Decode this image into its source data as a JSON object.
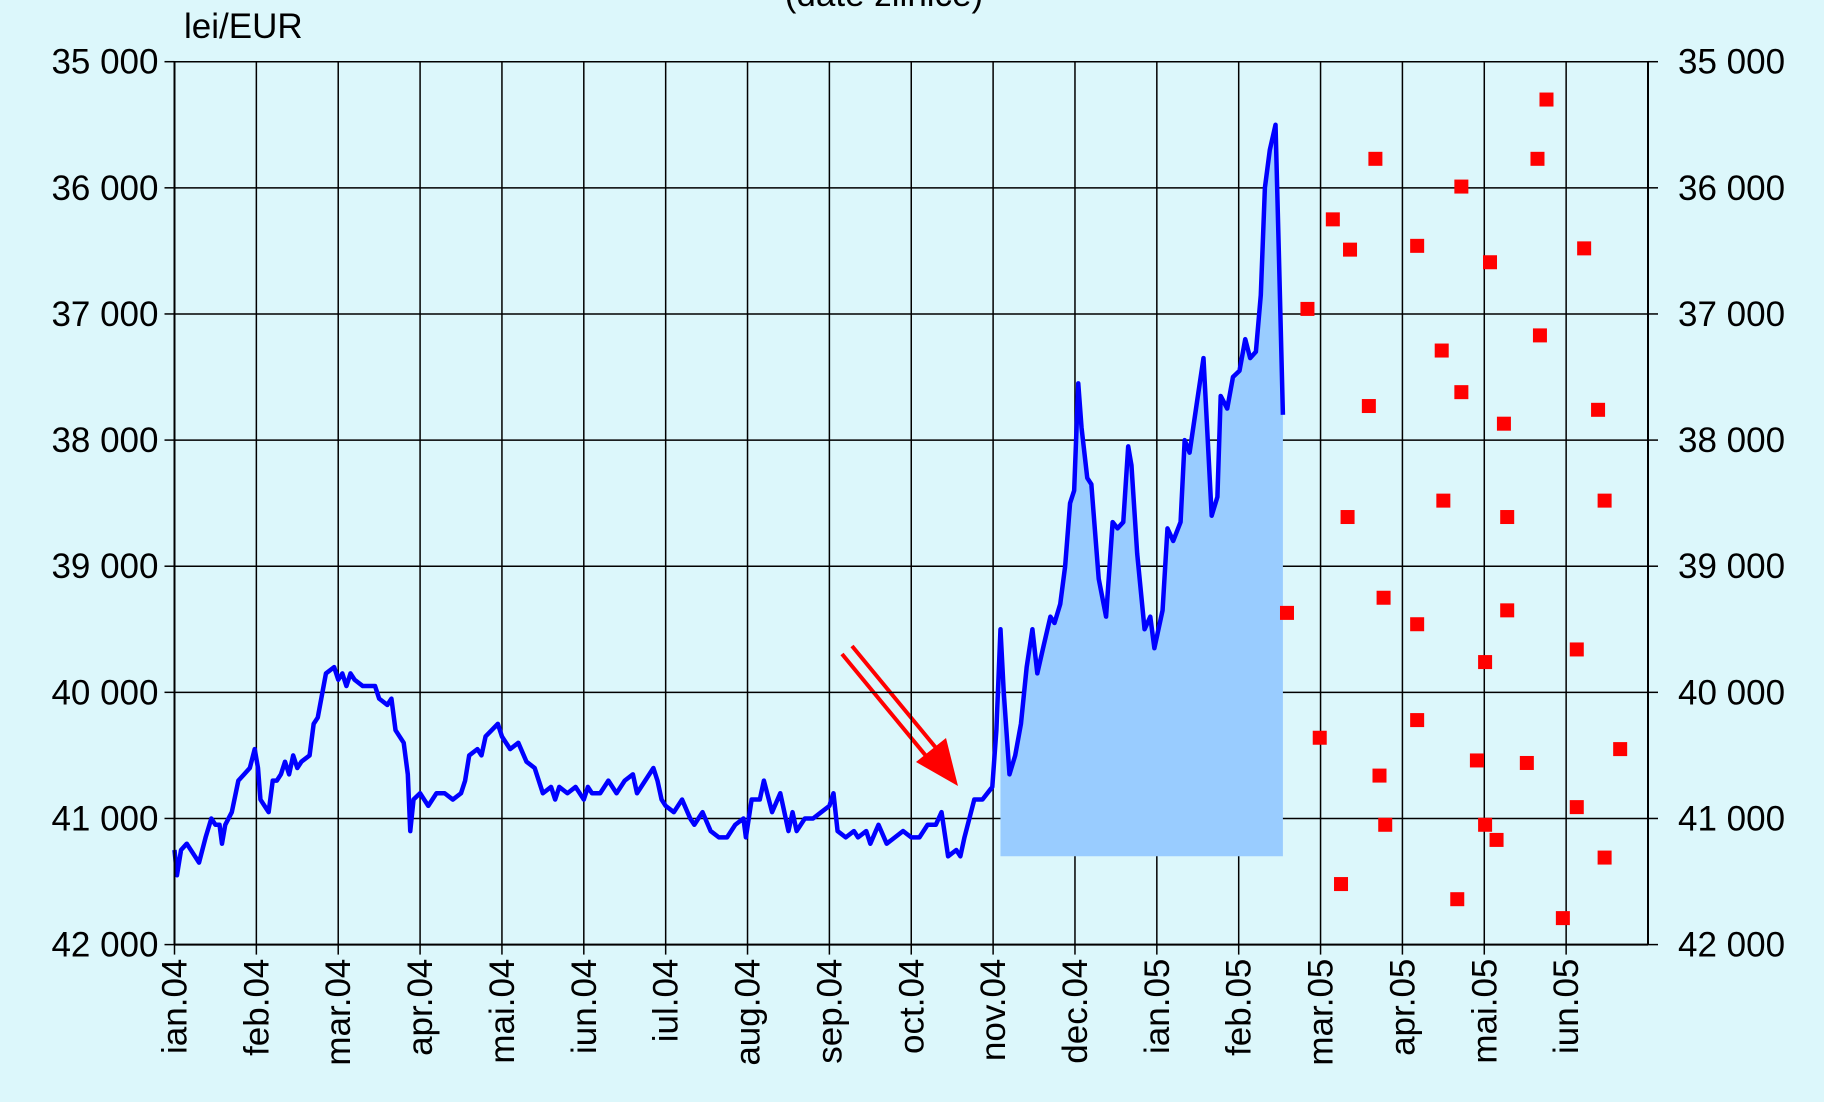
{
  "chart_data": {
    "type": "line",
    "subtitle": "(date zilnice)",
    "y_label": "lei/EUR",
    "xlim": [
      0,
      18
    ],
    "xticks": [
      {
        "value": 0,
        "label": "ian.04"
      },
      {
        "value": 1,
        "label": "feb.04"
      },
      {
        "value": 2,
        "label": "mar.04"
      },
      {
        "value": 3,
        "label": "apr.04"
      },
      {
        "value": 4,
        "label": "mai.04"
      },
      {
        "value": 5,
        "label": "iun.04"
      },
      {
        "value": 6,
        "label": "iul.04"
      },
      {
        "value": 7,
        "label": "aug.04"
      },
      {
        "value": 8,
        "label": "sep.04"
      },
      {
        "value": 9,
        "label": "oct.04"
      },
      {
        "value": 10,
        "label": "nov.04"
      },
      {
        "value": 11,
        "label": "dec.04"
      },
      {
        "value": 12,
        "label": "ian.05"
      },
      {
        "value": 13,
        "label": "feb.05"
      },
      {
        "value": 14,
        "label": "mar.05"
      },
      {
        "value": 15,
        "label": "apr.05"
      },
      {
        "value": 16,
        "label": "mai.05"
      },
      {
        "value": 17,
        "label": "iun.05"
      }
    ],
    "ylim": [
      42000,
      35000
    ],
    "yticks": [
      {
        "value": 35000,
        "label": "35 000"
      },
      {
        "value": 36000,
        "label": "36 000"
      },
      {
        "value": 37000,
        "label": "37 000"
      },
      {
        "value": 38000,
        "label": "38 000"
      },
      {
        "value": 39000,
        "label": "39 000"
      },
      {
        "value": 40000,
        "label": "40 000"
      },
      {
        "value": 41000,
        "label": "41 000"
      },
      {
        "value": 42000,
        "label": "42 000"
      }
    ],
    "y2lim": [
      42000,
      35000
    ],
    "y2ticks": [
      {
        "value": 35000,
        "label": "35 000"
      },
      {
        "value": 36000,
        "label": "36 000"
      },
      {
        "value": 37000,
        "label": "37 000"
      },
      {
        "value": 38000,
        "label": "38 000"
      },
      {
        "value": 39000,
        "label": "39 000"
      },
      {
        "value": 40000,
        "label": "40 000"
      },
      {
        "value": 41000,
        "label": "41 000"
      },
      {
        "value": 42000,
        "label": "42 000"
      }
    ],
    "grid": true,
    "series": [
      {
        "type": "line",
        "color": "#0000ff",
        "x": [
          0.0,
          0.03,
          0.08,
          0.15,
          0.25,
          0.3,
          0.38,
          0.45,
          0.5,
          0.55,
          0.58,
          0.62,
          0.7,
          0.78,
          0.85,
          0.92,
          0.98,
          1.02,
          1.05,
          1.1,
          1.15,
          1.2,
          1.25,
          1.3,
          1.35,
          1.4,
          1.45,
          1.5,
          1.55,
          1.65,
          1.7,
          1.75,
          1.85,
          1.95,
          2.0,
          2.05,
          2.1,
          2.15,
          2.2,
          2.3,
          2.45,
          2.5,
          2.6,
          2.65,
          2.7,
          2.8,
          2.85,
          2.88,
          2.92,
          3.0,
          3.05,
          3.1,
          3.2,
          3.3,
          3.4,
          3.5,
          3.55,
          3.6,
          3.7,
          3.75,
          3.8,
          3.95,
          4.0,
          4.1,
          4.2,
          4.3,
          4.4,
          4.5,
          4.6,
          4.65,
          4.7,
          4.8,
          4.9,
          5.0,
          5.05,
          5.1,
          5.2,
          5.3,
          5.4,
          5.5,
          5.6,
          5.65,
          5.75,
          5.85,
          5.9,
          5.95,
          6.0,
          6.1,
          6.2,
          6.3,
          6.35,
          6.45,
          6.55,
          6.65,
          6.75,
          6.85,
          6.95,
          6.98,
          7.05,
          7.15,
          7.2,
          7.3,
          7.4,
          7.5,
          7.55,
          7.6,
          7.7,
          7.8,
          7.9,
          8.0,
          8.05,
          8.1,
          8.2,
          8.3,
          8.35,
          8.45,
          8.5,
          8.6,
          8.7,
          8.8,
          8.9,
          9.0,
          9.1,
          9.2,
          9.3,
          9.37,
          9.45,
          9.55,
          9.6,
          9.65,
          9.77,
          9.87,
          9.99,
          10.04,
          10.09,
          10.13,
          10.2,
          10.27,
          10.34,
          10.41,
          10.48,
          10.54,
          10.61,
          10.7,
          10.75,
          10.82,
          10.88,
          10.94,
          10.99,
          11.04,
          11.08,
          11.15,
          11.2,
          11.29,
          11.38,
          11.46,
          11.52,
          11.59,
          11.65,
          11.69,
          11.76,
          11.85,
          11.92,
          11.97,
          12.07,
          12.13,
          12.2,
          12.29,
          12.34,
          12.4,
          12.49,
          12.57,
          12.67,
          12.74,
          12.78,
          12.86,
          12.93,
          13.01,
          13.08,
          13.14,
          13.21,
          13.27,
          13.32,
          13.38,
          13.45,
          13.49,
          13.54
        ],
        "values": [
          41250,
          41450,
          41250,
          41200,
          41300,
          41350,
          41150,
          41000,
          41050,
          41050,
          41200,
          41050,
          40950,
          40700,
          40650,
          40600,
          40450,
          40600,
          40850,
          40900,
          40950,
          40700,
          40700,
          40650,
          40550,
          40650,
          40500,
          40600,
          40550,
          40500,
          40250,
          40200,
          39850,
          39800,
          39900,
          39850,
          39950,
          39850,
          39900,
          39950,
          39950,
          40050,
          40100,
          40050,
          40300,
          40400,
          40650,
          41100,
          40850,
          40800,
          40850,
          40900,
          40800,
          40800,
          40850,
          40800,
          40700,
          40500,
          40450,
          40500,
          40350,
          40250,
          40350,
          40450,
          40400,
          40550,
          40600,
          40800,
          40750,
          40850,
          40750,
          40800,
          40750,
          40850,
          40750,
          40800,
          40800,
          40700,
          40800,
          40700,
          40650,
          40800,
          40700,
          40600,
          40700,
          40850,
          40900,
          40950,
          40850,
          41000,
          41050,
          40950,
          41100,
          41150,
          41150,
          41050,
          41000,
          41150,
          40850,
          40850,
          40700,
          40950,
          40800,
          41100,
          40950,
          41100,
          41000,
          41000,
          40950,
          40900,
          40800,
          41100,
          41150,
          41100,
          41150,
          41100,
          41200,
          41050,
          41200,
          41150,
          41100,
          41150,
          41150,
          41050,
          41050,
          40950,
          41300,
          41250,
          41300,
          41150,
          40850,
          40850,
          40750,
          40300,
          39500,
          40000,
          40650,
          40500,
          40250,
          39800,
          39500,
          39850,
          39650,
          39400,
          39450,
          39300,
          39000,
          38500,
          38400,
          37550,
          37900,
          38300,
          38350,
          39100,
          39400,
          38650,
          38700,
          38650,
          38050,
          38200,
          38900,
          39500,
          39400,
          39650,
          39350,
          38700,
          38800,
          38650,
          38000,
          38100,
          37700,
          37350,
          38600,
          38450,
          37650,
          37750,
          37500,
          37450,
          37200,
          37350,
          37300,
          36850,
          36000,
          35700,
          35500,
          36500,
          37800
        ]
      },
      {
        "type": "area",
        "color": "#99ccff",
        "base": 41300,
        "x": [
          10.09,
          10.13,
          10.2,
          10.27,
          10.34,
          10.41,
          10.48,
          10.54,
          10.61,
          10.7,
          10.75,
          10.82,
          10.88,
          10.94,
          10.99,
          11.04,
          11.08,
          11.15,
          11.2,
          11.29,
          11.38,
          11.46,
          11.52,
          11.59,
          11.65,
          11.69,
          11.76,
          11.85,
          11.92,
          11.97,
          12.07,
          12.13,
          12.2,
          12.29,
          12.34,
          12.4,
          12.49,
          12.57,
          12.67,
          12.74,
          12.78,
          12.86,
          12.93,
          13.01,
          13.08,
          13.14,
          13.21,
          13.27,
          13.32,
          13.38,
          13.45,
          13.49,
          13.54
        ],
        "values": [
          39500,
          40000,
          40650,
          40500,
          40250,
          39800,
          39500,
          39850,
          39650,
          39400,
          39450,
          39300,
          39000,
          38500,
          38400,
          37550,
          37900,
          38300,
          38350,
          39100,
          39400,
          38650,
          38700,
          38650,
          38050,
          38200,
          38900,
          39500,
          39400,
          39650,
          39350,
          38700,
          38800,
          38650,
          38000,
          38100,
          37700,
          37350,
          38600,
          38450,
          37650,
          37750,
          37500,
          37450,
          37200,
          37350,
          37300,
          36850,
          36000,
          35700,
          35500,
          36500,
          37800
        ]
      },
      {
        "type": "scatter",
        "color": "#ff0000",
        "x": [
          13.84,
          13.59,
          13.99,
          14.15,
          14.25,
          14.33,
          14.36,
          14.59,
          14.67,
          14.72,
          14.77,
          14.79,
          15.18,
          15.18,
          15.18,
          15.48,
          15.5,
          15.67,
          15.72,
          15.72,
          15.91,
          16.01,
          16.01,
          16.07,
          16.15,
          16.24,
          16.28,
          16.28,
          16.52,
          16.65,
          16.68,
          16.76,
          16.96,
          17.13,
          17.13,
          17.22,
          17.39,
          17.47,
          17.47,
          17.66
        ],
        "values": [
          36960,
          39370,
          40360,
          36250,
          41520,
          38610,
          36490,
          37730,
          35770,
          40660,
          39250,
          41050,
          36460,
          39460,
          40220,
          37290,
          38480,
          41640,
          35990,
          37620,
          40540,
          39760,
          41050,
          36590,
          41170,
          37870,
          38610,
          39350,
          40560,
          35770,
          37170,
          35300,
          41790,
          39660,
          40910,
          36480,
          37760,
          38480,
          41310,
          40450
        ]
      }
    ]
  }
}
